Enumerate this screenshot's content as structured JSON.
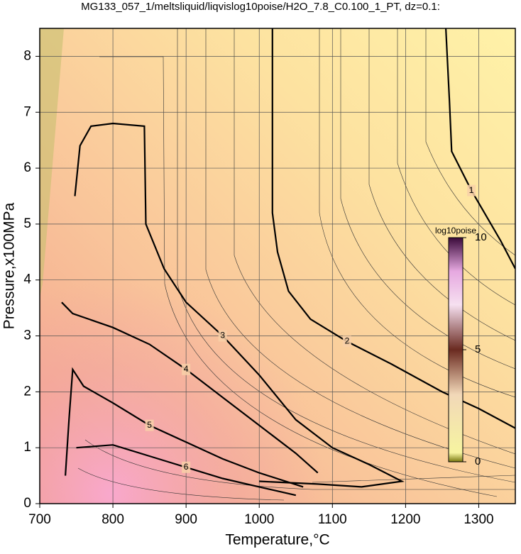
{
  "chart_data": {
    "type": "contour",
    "title": "MG133_057_1/meltsliquid/liqvislog10poise/H2O_7.8_C0.100_1_PT, dz=0.1:",
    "x_label": "Temperature,°C",
    "y_label": "Pressure,x100MPa",
    "xlim": [
      700,
      1350
    ],
    "ylim": [
      0,
      8.5
    ],
    "xticks": [
      700,
      800,
      900,
      1000,
      1100,
      1200,
      1300
    ],
    "yticks": [
      0,
      1,
      2,
      3,
      4,
      5,
      6,
      7,
      8
    ],
    "grid": true,
    "series": [
      {
        "name": "1",
        "color": "#000000",
        "x": [
          1255,
          1260,
          1263,
          1290,
          1330,
          1350
        ],
        "values": [
          8.5,
          7.2,
          6.3,
          5.6,
          4.7,
          4.2
        ]
      },
      {
        "name": "2",
        "color": "#000000",
        "x": [
          1018,
          1018,
          1025,
          1040,
          1070,
          1120,
          1180,
          1250,
          1300,
          1350
        ],
        "values": [
          8.5,
          5.2,
          4.5,
          3.8,
          3.3,
          2.9,
          2.5,
          2.0,
          1.7,
          1.35
        ]
      },
      {
        "name": "3",
        "color": "#000000",
        "x": [
          748,
          755,
          770,
          800,
          843,
          845,
          870,
          900,
          950,
          1000,
          1050,
          1100,
          1150,
          1195,
          1140,
          1080,
          1000
        ],
        "values": [
          5.5,
          6.4,
          6.75,
          6.8,
          6.75,
          5.0,
          4.2,
          3.6,
          3.0,
          2.3,
          1.5,
          1.0,
          0.7,
          0.4,
          0.3,
          0.35,
          0.4
        ]
      },
      {
        "name": "4",
        "color": "#000000",
        "x": [
          730,
          745,
          800,
          850,
          900,
          950,
          1000,
          1050,
          1080
        ],
        "values": [
          3.6,
          3.4,
          3.15,
          2.85,
          2.4,
          1.9,
          1.4,
          0.9,
          0.55
        ]
      },
      {
        "name": "5",
        "color": "#000000",
        "x": [
          735,
          740,
          745,
          760,
          800,
          850,
          900,
          950,
          1000,
          1060
        ],
        "values": [
          0.5,
          1.5,
          2.4,
          2.1,
          1.8,
          1.4,
          1.1,
          0.8,
          0.55,
          0.3
        ]
      },
      {
        "name": "6",
        "color": "#000000",
        "x": [
          750,
          800,
          850,
          900,
          950,
          1000,
          1050
        ],
        "values": [
          1.0,
          1.05,
          0.85,
          0.65,
          0.45,
          0.3,
          0.15
        ]
      }
    ],
    "colorbar": {
      "label": "log10poise",
      "lim": [
        0,
        10
      ],
      "ticks": [
        0,
        5,
        10
      ]
    }
  }
}
